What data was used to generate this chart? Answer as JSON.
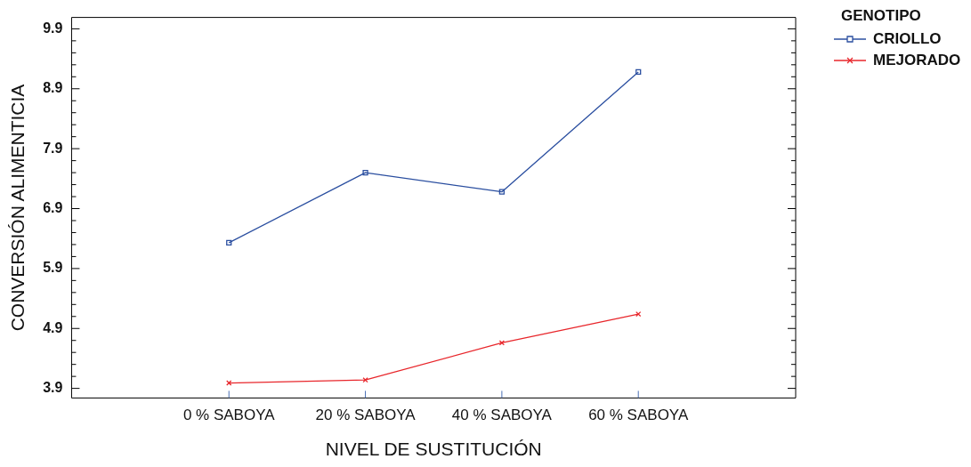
{
  "chart_data": {
    "type": "line",
    "xlabel": "NIVEL DE SUSTITUCIÓN",
    "ylabel": "CONVERSIÓN ALIMENTICIA",
    "legend_title": "GENOTIPO",
    "legend": "top right",
    "grid": false,
    "categories": [
      "0 % SABOYA",
      "20 % SABOYA",
      "40 % SABOYA",
      "60 % SABOYA"
    ],
    "ylim": [
      3.74,
      10.09
    ],
    "yticks": [
      {
        "value": 3.9,
        "label": "3.9"
      },
      {
        "value": 4.1,
        "label": null
      },
      {
        "value": 4.3,
        "label": null
      },
      {
        "value": 4.5,
        "label": null
      },
      {
        "value": 4.7,
        "label": null
      },
      {
        "value": 4.9,
        "label": "4.9"
      },
      {
        "value": 5.1,
        "label": null
      },
      {
        "value": 5.3,
        "label": null
      },
      {
        "value": 5.5,
        "label": null
      },
      {
        "value": 5.7,
        "label": null
      },
      {
        "value": 5.9,
        "label": "5.9"
      },
      {
        "value": 6.1,
        "label": null
      },
      {
        "value": 6.3,
        "label": null
      },
      {
        "value": 6.5,
        "label": null
      },
      {
        "value": 6.7,
        "label": null
      },
      {
        "value": 6.9,
        "label": "6.9"
      },
      {
        "value": 7.1,
        "label": null
      },
      {
        "value": 7.3,
        "label": null
      },
      {
        "value": 7.5,
        "label": null
      },
      {
        "value": 7.7,
        "label": null
      },
      {
        "value": 7.9,
        "label": "7.9"
      },
      {
        "value": 8.1,
        "label": null
      },
      {
        "value": 8.3,
        "label": null
      },
      {
        "value": 8.5,
        "label": null
      },
      {
        "value": 8.7,
        "label": null
      },
      {
        "value": 8.9,
        "label": "8.9"
      },
      {
        "value": 9.1,
        "label": null
      },
      {
        "value": 9.3,
        "label": null
      },
      {
        "value": 9.5,
        "label": null
      },
      {
        "value": 9.7,
        "label": null
      },
      {
        "value": 9.9,
        "label": "9.9"
      }
    ],
    "series": [
      {
        "name": "CRIOLLO",
        "color": "#2b4fa0",
        "marker": "square",
        "values": [
          6.33,
          7.5,
          7.18,
          9.18
        ]
      },
      {
        "name": "MEJORADO",
        "color": "#e8262b",
        "marker": "cross",
        "values": [
          3.99,
          4.04,
          4.66,
          5.14
        ]
      }
    ]
  }
}
